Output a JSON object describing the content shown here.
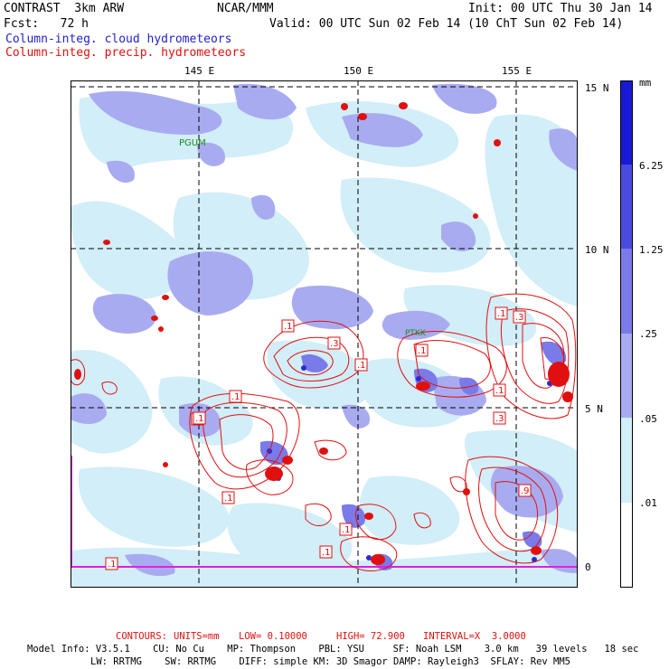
{
  "header": {
    "left1": "CONTRAST  3km ARW",
    "center1": "NCAR/MMM",
    "right1": "Init: 00 UTC Thu 30 Jan 14",
    "left2": "Fcst:   72 h",
    "right2": "Valid: 00 UTC Sun 02 Feb 14 (10 ChT Sun 02 Feb 14)",
    "legend_cloud": "Column-integ. cloud hydrometeors",
    "legend_precip": "Column-integ. precip. hydrometeors"
  },
  "map": {
    "lon_labels": [
      "145 E",
      "150 E",
      "155 E"
    ],
    "lat_labels": [
      "15 N",
      "10 N",
      "5 N",
      "0"
    ],
    "station_labels": [
      "PGUM",
      "PTKK"
    ],
    "contour_labels": [
      ".1",
      ".1",
      ".1",
      ".1",
      ".1",
      ".1",
      ".1",
      ".1",
      ".1",
      ".1",
      ".3",
      ".3",
      ".3",
      ".9",
      ".1",
      ".1"
    ]
  },
  "colorbar": {
    "unit": "mm",
    "ticks": [
      "6.25",
      "1.25",
      ".25",
      ".05",
      ".01"
    ],
    "colors": [
      "#1a1ad6",
      "#4a4ae0",
      "#7a7ae8",
      "#a9abf0",
      "#d2eef8",
      "#ffffff"
    ]
  },
  "footer": {
    "contours_label": "CONTOURS:",
    "units": "UNITS=mm",
    "low": "LOW= 0.10000",
    "high": "HIGH= 72.900",
    "interval": "INTERVAL=X  3.0000",
    "model_line1": "Model Info: V3.5.1    CU: No Cu    MP: Thompson    PBL: YSU     SF: Noah LSM    3.0 km   39 levels   18 sec",
    "model_line2": "LW: RRTMG    SW: RRTMG    DIFF: simple KM: 3D Smagor DAMP: Rayleigh3  SFLAY: Rev MM5"
  }
}
